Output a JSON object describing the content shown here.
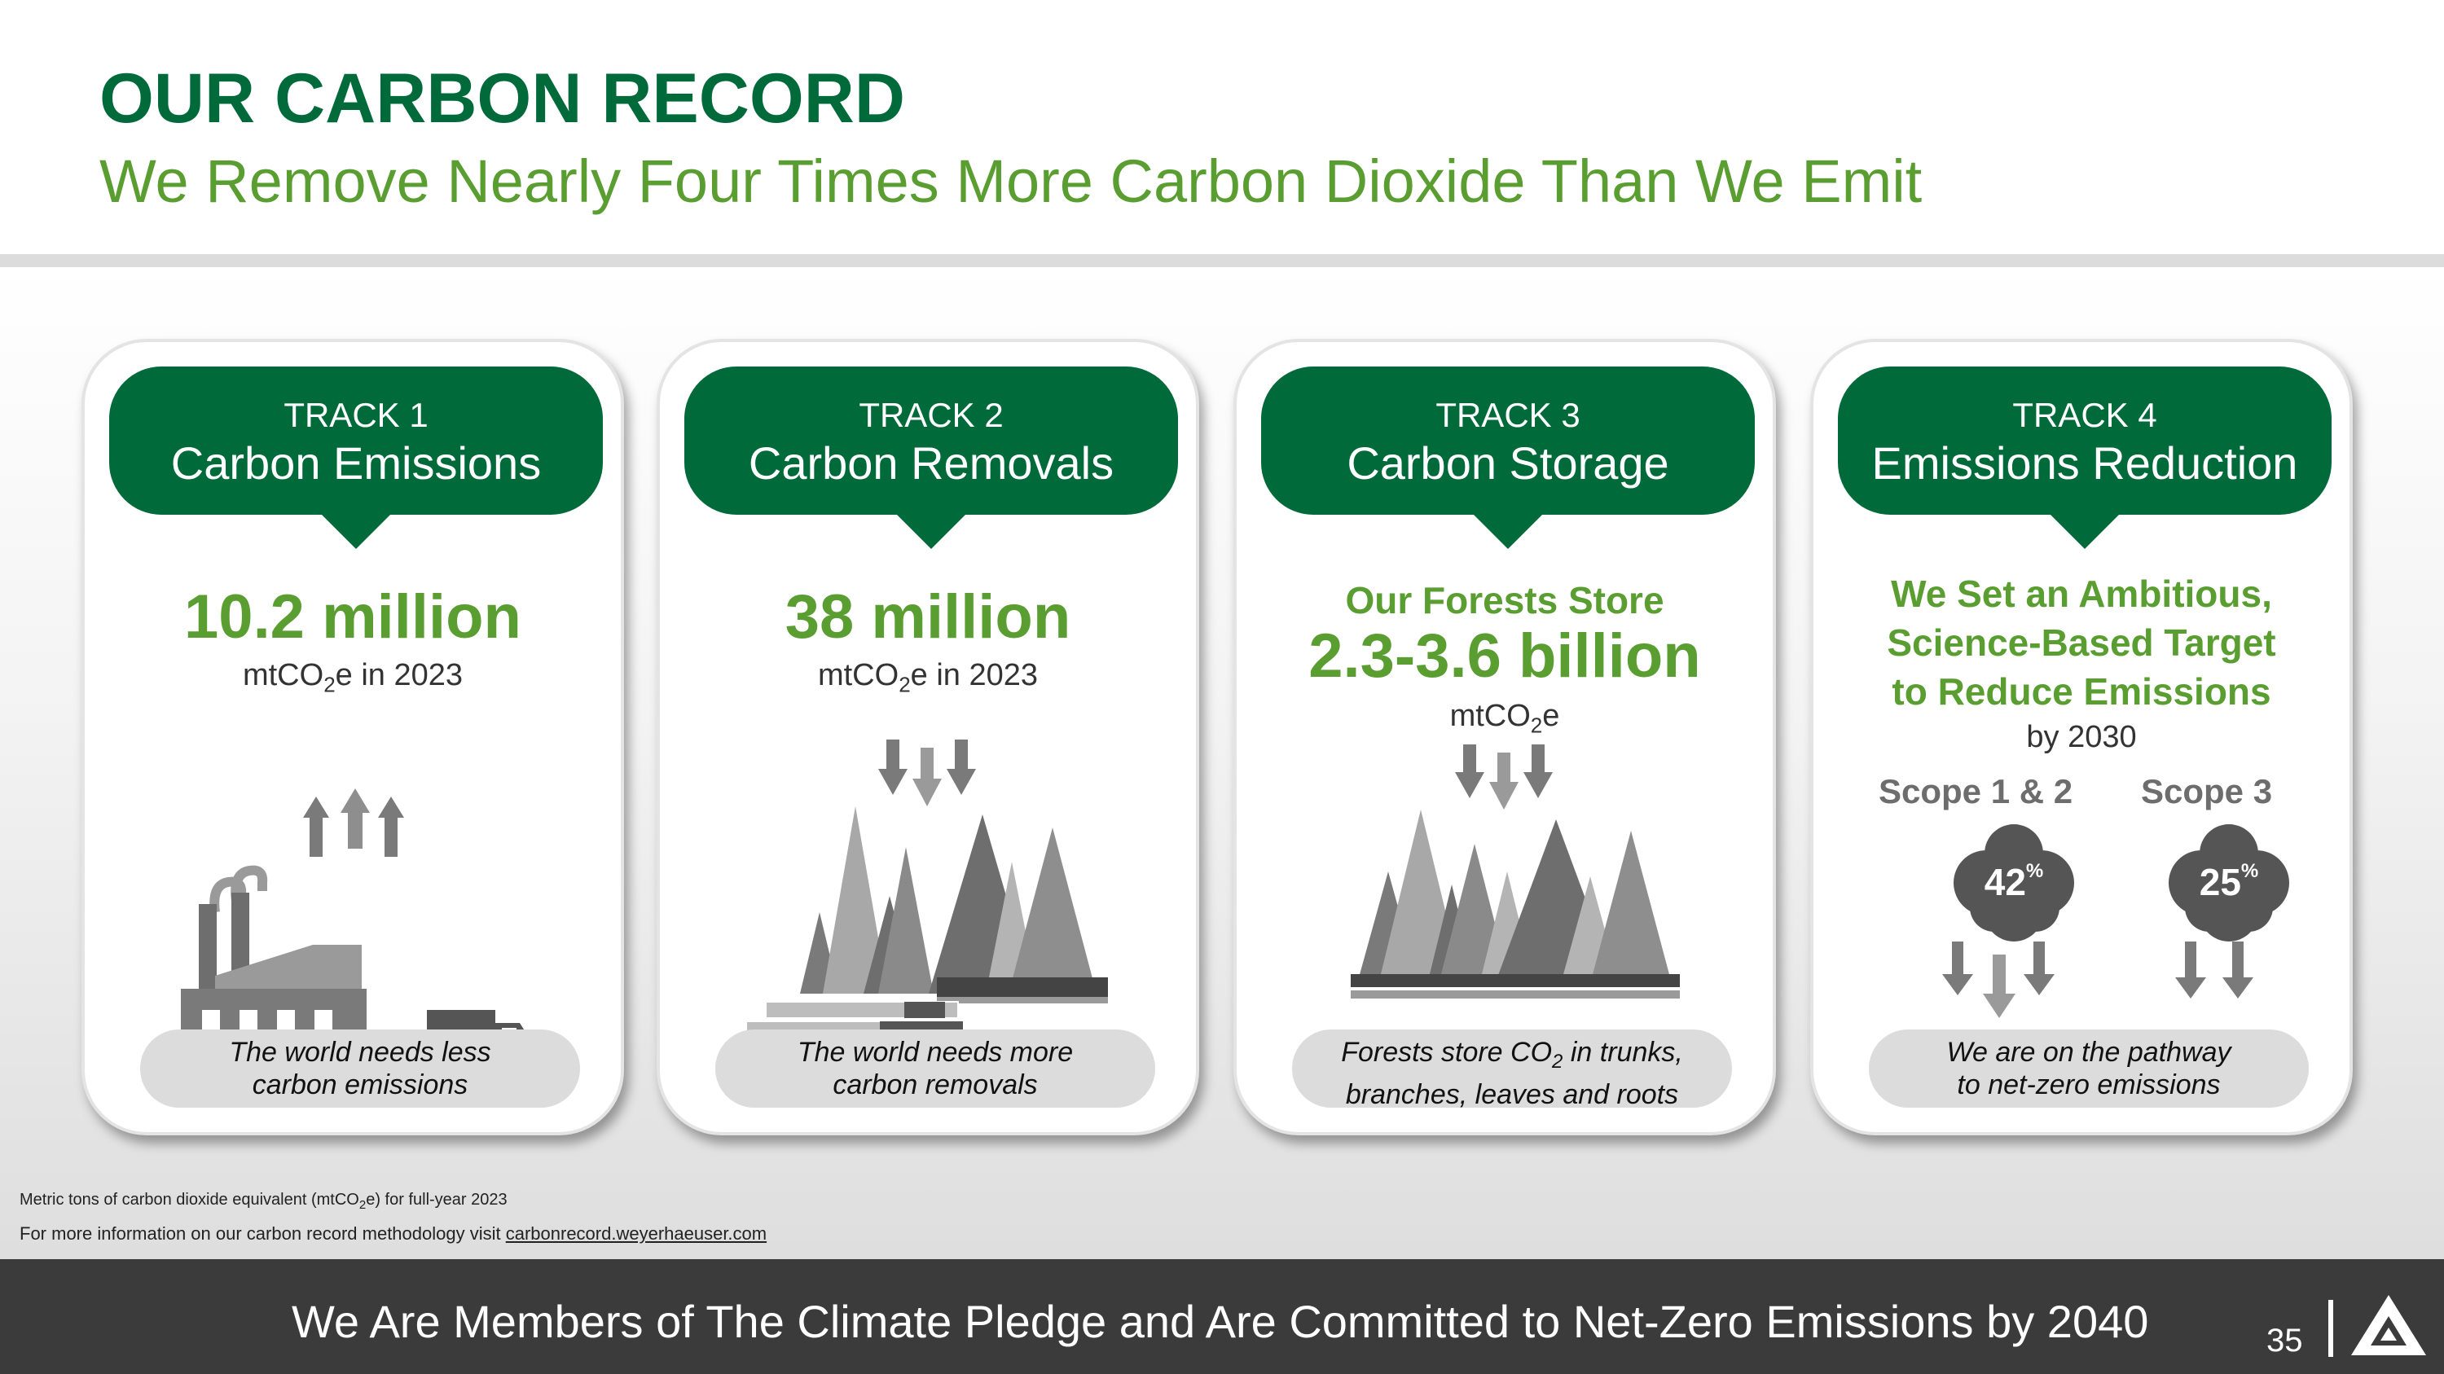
{
  "header": {
    "title": "OUR CARBON RECORD",
    "subtitle": "We Remove Nearly Four Times More Carbon Dioxide Than We Emit"
  },
  "tracks": [
    {
      "track": "TRACK 1",
      "name": "Carbon Emissions",
      "value": "10.2 million",
      "unit_pre": "mtCO",
      "unit_sub": "2",
      "unit_post": "e in 2023",
      "caption_line1": "The world needs less",
      "caption_line2": "carbon emissions",
      "icon": "factory-icon"
    },
    {
      "track": "TRACK 2",
      "name": "Carbon Removals",
      "value": "38 million",
      "unit_pre": "mtCO",
      "unit_sub": "2",
      "unit_post": "e in 2023",
      "caption_line1": "The world needs more",
      "caption_line2": "carbon removals",
      "icon": "forest-logs-icon"
    },
    {
      "track": "TRACK 3",
      "name": "Carbon Storage",
      "lead": "Our Forests Store",
      "value": "2.3-3.6 billion",
      "unit_pre": "mtCO",
      "unit_sub": "2",
      "unit_post": "e",
      "caption_line1_pre": "Forests store CO",
      "caption_line1_sub": "2",
      "caption_line1_post": " in trunks,",
      "caption_line2": "branches, leaves and roots",
      "icon": "forest-icon"
    },
    {
      "track": "TRACK 4",
      "name": "Emissions Reduction",
      "target_line1": "We Set an Ambitious,",
      "target_line2": "Science-Based Target",
      "target_line3": "to Reduce Emissions",
      "target_by": "by 2030",
      "scope1_label": "Scope 1 & 2",
      "scope1_value": "42",
      "scope3_label": "Scope 3",
      "scope3_value": "25",
      "pct_sign": "%",
      "caption_line1": "We are on the pathway",
      "caption_line2": "to net-zero emissions",
      "icon": "cloud-reduction-icon"
    }
  ],
  "footnotes": {
    "line1_pre": "Metric tons of carbon dioxide equivalent (mtCO",
    "line1_sub": "2",
    "line1_post": "e) for full-year 2023",
    "line2_pre": "For more information on our carbon record methodology visit ",
    "line2_link": "carbonrecord.weyerhaeuser.com"
  },
  "footer": {
    "text": "We Are Members of The Climate Pledge and Are Committed to Net-Zero Emissions by 2040",
    "page_number": "35",
    "logo": "weyerhaeuser-logo-icon"
  },
  "colors": {
    "dark_green": "#006a3a",
    "light_green": "#5a9e32",
    "footer_bg": "#3b3b3b"
  }
}
